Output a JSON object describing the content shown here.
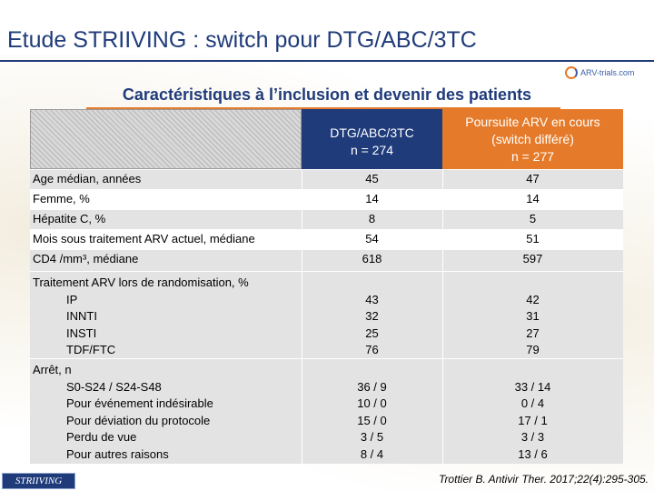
{
  "header": {
    "title": "Etude STRIIVING : switch pour DTG/ABC/3TC",
    "logo_text": "ARV-trials.com",
    "subtitle": "Caractéristiques à l’inclusion et devenir des patients"
  },
  "table": {
    "col1": {
      "line1": "DTG/ABC/3TC",
      "line2": "n = 274"
    },
    "col2": {
      "line1": "Poursuite ARV en cours",
      "line2": "(switch différé)",
      "line3": "n = 277"
    },
    "rows": [
      {
        "label": "Age médian, années",
        "v1": "45",
        "v2": "47"
      },
      {
        "label": "Femme, %",
        "v1": "14",
        "v2": "14"
      },
      {
        "label": "Hépatite C, %",
        "v1": "8",
        "v2": "5"
      },
      {
        "label": "Mois sous traitement ARV actuel, médiane",
        "v1": "54",
        "v2": "51"
      },
      {
        "label": "CD4 /mm³, médiane",
        "v1": "618",
        "v2": "597"
      }
    ],
    "treatment": {
      "label": "Traitement ARV lors de randomisation, %",
      "items": [
        {
          "label": "IP",
          "v1": "43",
          "v2": "42"
        },
        {
          "label": "INNTI",
          "v1": "32",
          "v2": "31"
        },
        {
          "label": "INSTI",
          "v1": "25",
          "v2": "27"
        },
        {
          "label": "TDF/FTC",
          "v1": "76",
          "v2": "79"
        }
      ]
    },
    "stop": {
      "label": "Arrêt, n",
      "items": [
        {
          "label": "S0-S24 / S24-S48",
          "v1": "36 / 9",
          "v2": "33 / 14"
        },
        {
          "label": "Pour événement indésirable",
          "v1": "10 / 0",
          "v2": "0 / 4"
        },
        {
          "label": "Pour déviation du protocole",
          "v1": "15 / 0",
          "v2": "17 / 1"
        },
        {
          "label": "Perdu de vue",
          "v1": "3 / 5",
          "v2": "3 / 3"
        },
        {
          "label": "Pour autres raisons",
          "v1": "8 / 4",
          "v2": "13 / 6"
        }
      ]
    }
  },
  "footer": {
    "badge": "STRIIVING",
    "reference": "Trottier B. Antivir Ther. 2017;22(4):295-305."
  },
  "colors": {
    "navy": "#1f3b7a",
    "orange": "#e57b2a",
    "shade": "#e3e3e3"
  }
}
